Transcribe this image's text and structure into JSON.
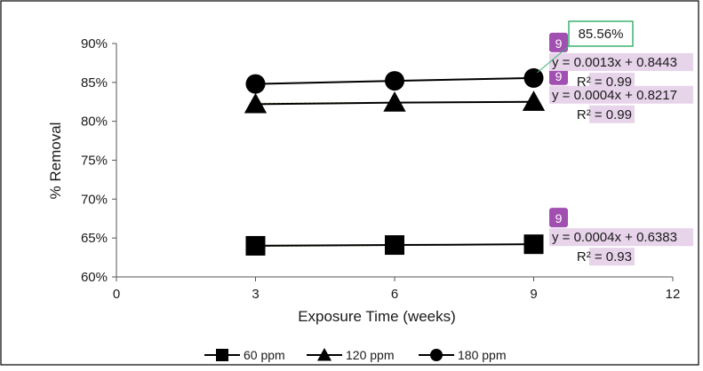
{
  "chart_data": {
    "type": "scatter",
    "title": "",
    "xlabel": "Exposure Time (weeks)",
    "ylabel": "% Removal",
    "xlim": [
      0,
      12
    ],
    "ylim": [
      0.6,
      0.9
    ],
    "x_ticks": [
      "0",
      "3",
      "6",
      "9",
      "12"
    ],
    "y_ticks": [
      "60%",
      "65%",
      "70%",
      "75%",
      "80%",
      "85%",
      "90%"
    ],
    "grid": false,
    "legend_position": "bottom",
    "series": [
      {
        "name": "60 ppm",
        "marker": "square",
        "x": [
          3,
          6,
          9
        ],
        "y": [
          0.64,
          0.641,
          0.642
        ],
        "trendline": {
          "slope": 0.0004,
          "intercept": 0.6383,
          "equation": "y = 0.0004x + 0.6383",
          "r2": "R² = 0.93",
          "badge": "9"
        }
      },
      {
        "name": "120 ppm",
        "marker": "triangle",
        "x": [
          3,
          6,
          9
        ],
        "y": [
          0.822,
          0.824,
          0.825
        ],
        "trendline": {
          "slope": 0.0004,
          "intercept": 0.8217,
          "equation": "y = 0.0004x + 0.8217",
          "r2": "R² = 0.99",
          "badge": "9"
        }
      },
      {
        "name": "180 ppm",
        "marker": "circle",
        "x": [
          3,
          6,
          9
        ],
        "y": [
          0.848,
          0.852,
          0.8556
        ],
        "trendline": {
          "slope": 0.0013,
          "intercept": 0.8443,
          "equation": "y = 0.0013x + 0.8443",
          "r2": "R² = 0.99",
          "badge": "9"
        }
      }
    ],
    "callout": {
      "text": "85.56%",
      "series": "180 ppm",
      "x": 9,
      "y": 0.8556
    }
  },
  "colors": {
    "marker": "#000000",
    "trendline": "#8bc34a",
    "label_bg": "#e7d3ea",
    "badge": "#a14fb0",
    "callout_border": "#3cb371",
    "frame": "#000000",
    "axis": "#555555"
  }
}
